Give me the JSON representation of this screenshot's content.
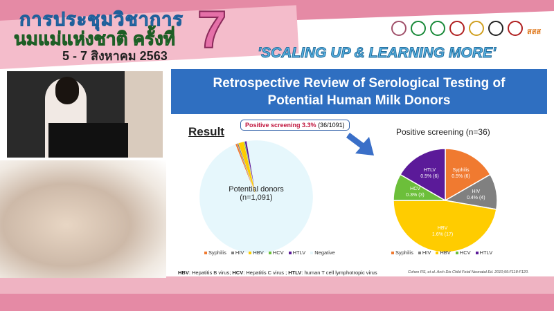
{
  "banner": {
    "title_line1": "การประชุมวิชาการ",
    "title_line2": "นมแม่แห่งชาติ ครั้งที่",
    "dates": "5 - 7 สิงหาคม 2563",
    "edition": "7",
    "slogan": "'SCALING UP & LEARNING MORE'",
    "logo_text": "สสส"
  },
  "slide": {
    "title_line1": "Retrospective Review of Serological Testing of",
    "title_line2": "Potential Human Milk Donors",
    "result_heading": "Result",
    "callout_bold": "Positive screening 3.3%",
    "callout_rest": "(36/1091)",
    "left_label_line1": "Potential donors",
    "left_label_line2": "(n=1,091)",
    "footnote": {
      "hbv_abbr": "HBV",
      "hbv": ": Hepatitis B virus; ",
      "hcv_abbr": "HCV",
      "hcv": ": Hepatitis C virus ; ",
      "htlv_abbr": "HTLV",
      "htlv": ": human T cell lymphotropic virus"
    },
    "citation": "Cohen RS, et al. Arch Dis Child Fetal Neonatal Ed. 2010;95:F118-F120."
  },
  "chart_data": [
    {
      "type": "pie",
      "title": "",
      "categories": [
        "Syphilis",
        "HIV",
        "HBV",
        "HCV",
        "HTLV",
        "Negative"
      ],
      "values": [
        6,
        4,
        17,
        3,
        6,
        1055
      ],
      "colors": [
        "#f07a30",
        "#808080",
        "#ffcc00",
        "#6cbf3a",
        "#5b1a99",
        "#e6f7fc"
      ],
      "legend": "bottom"
    },
    {
      "type": "pie",
      "title": "Positive screening (n=36)",
      "categories": [
        "Syphilis",
        "HIV",
        "HBV",
        "HCV",
        "HTLV"
      ],
      "values": [
        6,
        4,
        17,
        3,
        6
      ],
      "labels": [
        "0.5% (6)",
        "0.4% (4)",
        "1.6% (17)",
        "0.3% (3)",
        "0.5% (6)"
      ],
      "colors": [
        "#f07a30",
        "#808080",
        "#ffcc00",
        "#6cbf3a",
        "#5b1a99"
      ],
      "legend": "bottom"
    }
  ]
}
